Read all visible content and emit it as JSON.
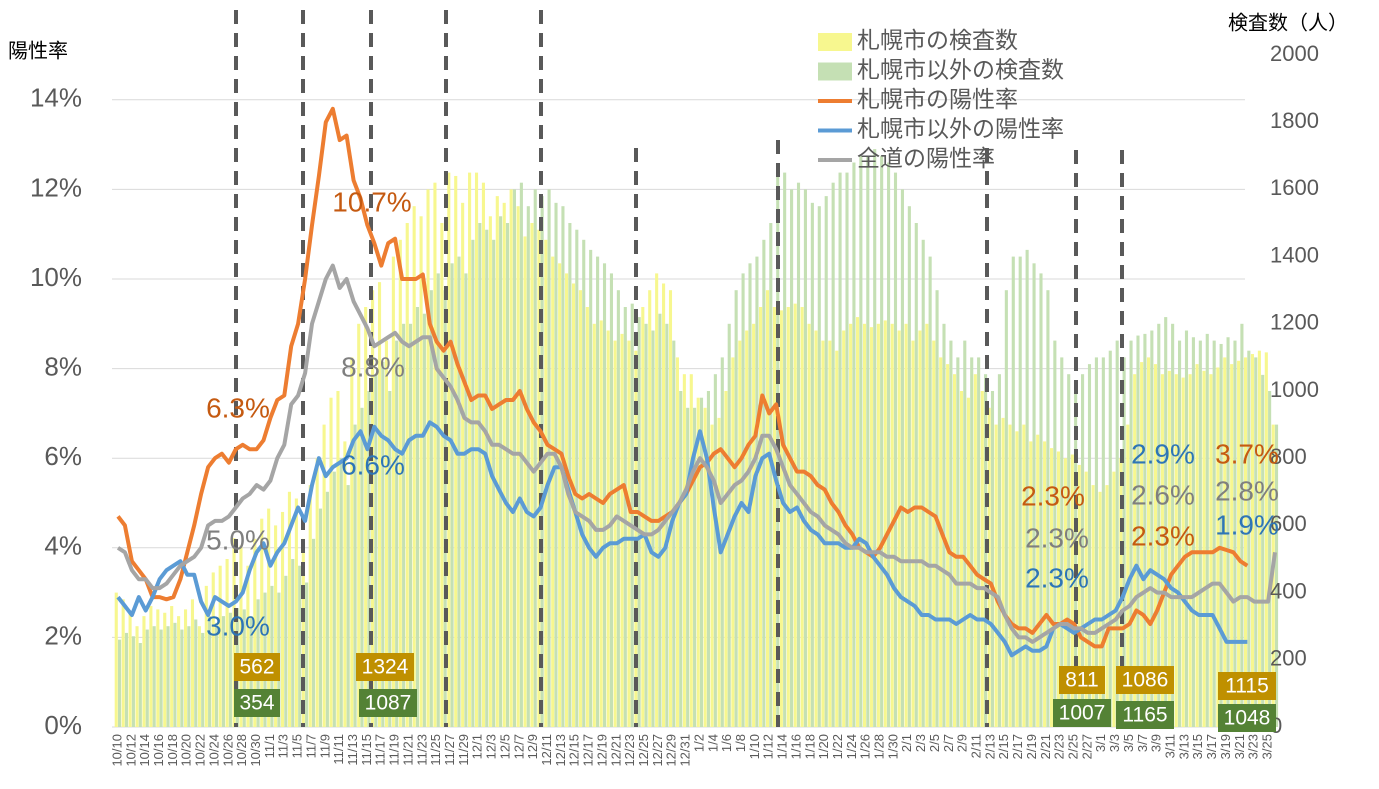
{
  "chart_data": {
    "type": "combo",
    "y_label": "陽性率",
    "y2_label": "検査数（人）",
    "ylim": [
      0,
      15
    ],
    "yticks": [
      {
        "value": 0,
        "label": "0%"
      },
      {
        "value": 2,
        "label": "2%"
      },
      {
        "value": 4,
        "label": "4%"
      },
      {
        "value": 6,
        "label": "6%"
      },
      {
        "value": 8,
        "label": "8%"
      },
      {
        "value": 10,
        "label": "10%"
      },
      {
        "value": 12,
        "label": "12%"
      },
      {
        "value": 14,
        "label": "14%"
      }
    ],
    "y2lim": [
      0,
      2000
    ],
    "y2ticks": [
      0,
      200,
      400,
      600,
      800,
      1000,
      1200,
      1400,
      1600,
      1800,
      2000
    ],
    "grid": true,
    "categories": [
      "10/10",
      null,
      "10/12",
      null,
      "10/14",
      null,
      "10/16",
      null,
      "10/18",
      null,
      "10/20",
      null,
      "10/22",
      null,
      "10/24",
      null,
      "10/26",
      null,
      "10/28",
      null,
      "10/30",
      null,
      "11/1",
      null,
      "11/3",
      null,
      "11/5",
      null,
      "11/7",
      null,
      "11/9",
      null,
      "11/11",
      null,
      "11/13",
      null,
      "11/15",
      null,
      "11/17",
      null,
      "11/19",
      null,
      "11/21",
      null,
      "11/23",
      null,
      "11/25",
      null,
      "11/27",
      null,
      "11/29",
      null,
      "12/1",
      null,
      "12/3",
      null,
      "12/5",
      null,
      "12/7",
      null,
      "12/9",
      null,
      "12/11",
      null,
      "12/13",
      null,
      "12/15",
      null,
      "12/17",
      null,
      "12/19",
      null,
      "12/21",
      null,
      "12/23",
      null,
      "12/25",
      null,
      "12/27",
      null,
      "12/29",
      null,
      "12/31",
      null,
      "1/2",
      null,
      "1/4",
      null,
      "1/6",
      null,
      "1/8",
      null,
      "1/10",
      null,
      "1/12",
      null,
      "1/14",
      null,
      "1/16",
      null,
      "1/18",
      null,
      "1/20",
      null,
      "1/22",
      null,
      "1/24",
      null,
      "1/26",
      null,
      "1/28",
      null,
      "1/30",
      null,
      "2/1",
      null,
      "2/3",
      null,
      "2/5",
      null,
      "2/7",
      null,
      "2/9",
      null,
      "2/11",
      null,
      "2/13",
      null,
      "2/15",
      null,
      "2/17",
      null,
      "2/19",
      null,
      "2/21",
      null,
      "2/23",
      null,
      "2/25",
      null,
      "2/27",
      null,
      "3/1",
      null,
      "3/3",
      null,
      "3/5",
      null,
      "3/7",
      null,
      "3/9",
      null,
      "3/11",
      null,
      "3/13",
      null,
      "3/15",
      null,
      "3/17",
      null,
      "3/19",
      null,
      "3/21",
      null,
      "3/23",
      null,
      "3/25",
      null
    ],
    "series": [
      {
        "name": "札幌市の検査数",
        "type": "bar",
        "axis": "y2",
        "color": "#f7f78f",
        "values": [
          400,
          380,
          340,
          300,
          330,
          360,
          350,
          340,
          360,
          330,
          350,
          380,
          300,
          420,
          460,
          480,
          500,
          562,
          540,
          480,
          560,
          620,
          650,
          600,
          640,
          700,
          680,
          560,
          720,
          800,
          900,
          980,
          1000,
          850,
          1100,
          1200,
          1250,
          1300,
          1324,
          1150,
          1400,
          1450,
          1500,
          1550,
          1520,
          1600,
          1620,
          1500,
          1650,
          1640,
          1560,
          1650,
          1650,
          1620,
          1520,
          1580,
          1560,
          1600,
          1550,
          1460,
          1500,
          1480,
          1450,
          1400,
          1380,
          1350,
          1320,
          1300,
          1250,
          1200,
          1210,
          1180,
          1150,
          1170,
          1150,
          1120,
          1250,
          1300,
          1350,
          1320,
          1300,
          1100,
          1050,
          1050,
          980,
          950,
          900,
          920,
          1000,
          1100,
          1150,
          1180,
          1200,
          1250,
          1300,
          1250,
          1240,
          1250,
          1260,
          1250,
          1200,
          1180,
          1150,
          1150,
          1120,
          1180,
          1200,
          1220,
          1200,
          1190,
          1200,
          1210,
          1200,
          1180,
          1200,
          1150,
          1180,
          1200,
          1150,
          1100,
          1080,
          1050,
          1000,
          980,
          1050,
          1000,
          950,
          900,
          920,
          900,
          880,
          900,
          850,
          870,
          850,
          830,
          820,
          800,
          811,
          780,
          760,
          720,
          700,
          720,
          760,
          800,
          900,
          1050,
          1086,
          1100,
          1080,
          1050,
          1060,
          1050,
          1040,
          1050,
          1080,
          1060,
          1050,
          1070,
          1100,
          1080,
          1090,
          1100,
          1110,
          1120,
          1115,
          900
        ]
      },
      {
        "name": "札幌市以外の検査数",
        "type": "bar",
        "axis": "y2",
        "color": "#c5e0b4",
        "values": [
          260,
          280,
          270,
          250,
          290,
          300,
          290,
          300,
          310,
          290,
          300,
          320,
          280,
          330,
          310,
          330,
          340,
          354,
          350,
          330,
          380,
          400,
          420,
          400,
          450,
          500,
          480,
          430,
          560,
          650,
          700,
          760,
          800,
          720,
          900,
          950,
          1000,
          1050,
          1087,
          1000,
          1150,
          1200,
          1200,
          1250,
          1230,
          1300,
          1350,
          1300,
          1380,
          1400,
          1350,
          1450,
          1500,
          1480,
          1450,
          1520,
          1500,
          1600,
          1620,
          1550,
          1600,
          1580,
          1600,
          1560,
          1550,
          1500,
          1480,
          1450,
          1420,
          1400,
          1380,
          1350,
          1300,
          1250,
          1260,
          1220,
          1200,
          1180,
          1230,
          1200,
          1150,
          1000,
          950,
          950,
          980,
          1000,
          1050,
          1100,
          1200,
          1300,
          1350,
          1380,
          1400,
          1450,
          1500,
          1650,
          1650,
          1600,
          1620,
          1600,
          1560,
          1550,
          1580,
          1620,
          1650,
          1650,
          1680,
          1700,
          1700,
          1720,
          1700,
          1680,
          1650,
          1600,
          1550,
          1500,
          1450,
          1400,
          1300,
          1200,
          1150,
          1100,
          1150,
          1100,
          1100,
          1050,
          1000,
          1050,
          1300,
          1400,
          1400,
          1420,
          1380,
          1350,
          1300,
          1150,
          1100,
          1050,
          1007,
          1050,
          1080,
          1100,
          1100,
          1120,
          1150,
          1100,
          1150,
          1165,
          1170,
          1180,
          1200,
          1220,
          1200,
          1150,
          1180,
          1160,
          1150,
          1170,
          1150,
          1140,
          1160,
          1150,
          1200,
          1120,
          1100,
          1048,
          1000,
          900
        ]
      },
      {
        "name": "札幌市の陽性率",
        "type": "line",
        "color": "#ed7d31",
        "values": [
          4.7,
          4.5,
          3.7,
          3.5,
          3.3,
          2.9,
          2.9,
          2.85,
          2.9,
          3.3,
          3.9,
          4.5,
          5.2,
          5.8,
          6.0,
          6.1,
          5.9,
          6.2,
          6.3,
          6.2,
          6.2,
          6.4,
          6.9,
          7.3,
          7.4,
          8.5,
          9.0,
          10.0,
          11.2,
          12.3,
          13.5,
          13.8,
          13.1,
          13.2,
          12.2,
          11.8,
          11.2,
          10.8,
          10.3,
          10.8,
          10.9,
          10.0,
          10.0,
          10.0,
          10.1,
          9.0,
          8.6,
          8.4,
          8.6,
          8.1,
          7.7,
          7.3,
          7.4,
          7.4,
          7.1,
          7.2,
          7.3,
          7.3,
          7.5,
          7.1,
          6.8,
          6.6,
          6.3,
          6.2,
          6.1,
          5.6,
          5.2,
          5.1,
          5.2,
          5.1,
          5.0,
          5.2,
          5.3,
          5.4,
          4.8,
          4.8,
          4.7,
          4.6,
          4.6,
          4.7,
          4.8,
          5.0,
          5.2,
          5.5,
          5.8,
          5.9,
          6.1,
          6.2,
          6.0,
          5.8,
          6.0,
          6.3,
          6.5,
          7.4,
          7.0,
          7.2,
          6.3,
          6.0,
          5.7,
          5.7,
          5.6,
          5.4,
          5.3,
          5.0,
          4.8,
          4.5,
          4.3,
          4.0,
          3.9,
          3.8,
          4.0,
          4.3,
          4.6,
          4.9,
          4.8,
          4.9,
          4.9,
          4.8,
          4.7,
          4.3,
          3.9,
          3.8,
          3.8,
          3.6,
          3.4,
          3.3,
          3.2,
          2.8,
          2.5,
          2.3,
          2.2,
          2.2,
          2.1,
          2.3,
          2.5,
          2.3,
          2.3,
          2.4,
          2.3,
          2.0,
          1.9,
          1.8,
          1.8,
          2.2,
          2.2,
          2.2,
          2.3,
          2.6,
          2.5,
          2.3,
          2.6,
          3.0,
          3.4,
          3.6,
          3.8,
          3.9,
          3.9,
          3.9,
          3.9,
          4.0,
          3.95,
          3.9,
          3.7,
          3.6,
          null,
          null,
          null,
          null
        ]
      },
      {
        "name": "札幌市以外の陽性率",
        "type": "line",
        "color": "#5b9bd5",
        "values": [
          2.9,
          2.7,
          2.5,
          2.9,
          2.6,
          2.9,
          3.3,
          3.5,
          3.6,
          3.7,
          3.4,
          3.4,
          2.8,
          2.5,
          2.9,
          2.8,
          2.7,
          2.8,
          3.0,
          3.5,
          3.9,
          4.1,
          3.6,
          3.9,
          4.1,
          4.5,
          4.9,
          4.6,
          5.4,
          6.0,
          5.6,
          5.8,
          5.9,
          6.0,
          6.4,
          6.6,
          6.2,
          6.7,
          6.5,
          6.4,
          6.2,
          6.1,
          6.4,
          6.5,
          6.5,
          6.8,
          6.7,
          6.5,
          6.4,
          6.1,
          6.1,
          6.2,
          6.2,
          6.1,
          5.6,
          5.3,
          5.0,
          4.8,
          5.1,
          4.8,
          4.7,
          4.9,
          5.4,
          5.8,
          5.8,
          5.3,
          4.8,
          4.3,
          4.0,
          3.8,
          4.0,
          4.1,
          4.1,
          4.2,
          4.2,
          4.2,
          4.3,
          3.9,
          3.8,
          4.0,
          4.6,
          5.0,
          5.2,
          6.0,
          6.6,
          6.0,
          4.9,
          3.9,
          4.3,
          4.7,
          5.0,
          4.8,
          5.6,
          6.0,
          6.1,
          5.5,
          5.0,
          4.8,
          4.9,
          4.6,
          4.4,
          4.3,
          4.1,
          4.1,
          4.1,
          4.0,
          4.0,
          4.2,
          4.1,
          3.8,
          3.6,
          3.4,
          3.1,
          2.9,
          2.8,
          2.7,
          2.5,
          2.5,
          2.4,
          2.4,
          2.4,
          2.3,
          2.4,
          2.5,
          2.4,
          2.4,
          2.3,
          2.1,
          1.9,
          1.6,
          1.7,
          1.8,
          1.7,
          1.7,
          1.8,
          2.2,
          2.3,
          2.2,
          2.1,
          2.2,
          2.3,
          2.4,
          2.4,
          2.5,
          2.6,
          2.9,
          3.3,
          3.6,
          3.3,
          3.5,
          3.4,
          3.3,
          3.1,
          3.0,
          2.8,
          2.6,
          2.5,
          2.5,
          2.5,
          2.2,
          1.9,
          1.9,
          1.9,
          1.9,
          null,
          null,
          null,
          null
        ]
      },
      {
        "name": "全道の陽性率",
        "type": "line",
        "color": "#a5a5a5",
        "values": [
          4.0,
          3.9,
          3.5,
          3.3,
          3.3,
          3.1,
          3.1,
          3.2,
          3.4,
          3.6,
          3.7,
          3.8,
          4.0,
          4.5,
          4.6,
          4.6,
          4.7,
          4.9,
          5.1,
          5.2,
          5.4,
          5.3,
          5.5,
          6.0,
          6.3,
          7.2,
          7.4,
          7.9,
          9.0,
          9.5,
          10.0,
          10.3,
          9.8,
          10.0,
          9.5,
          9.2,
          8.9,
          8.5,
          8.6,
          8.7,
          8.8,
          8.6,
          8.5,
          8.6,
          8.7,
          8.7,
          8.0,
          7.8,
          7.6,
          7.3,
          6.9,
          6.8,
          6.8,
          6.6,
          6.3,
          6.3,
          6.2,
          6.1,
          6.1,
          5.9,
          5.7,
          5.9,
          6.1,
          6.1,
          5.8,
          5.2,
          4.8,
          4.7,
          4.6,
          4.4,
          4.4,
          4.5,
          4.7,
          4.6,
          4.5,
          4.4,
          4.3,
          4.3,
          4.4,
          4.6,
          4.8,
          5.0,
          5.3,
          5.7,
          6.0,
          5.8,
          5.5,
          5.0,
          5.2,
          5.4,
          5.5,
          5.7,
          6.0,
          6.5,
          6.5,
          6.2,
          5.8,
          5.4,
          5.2,
          5.0,
          4.8,
          4.7,
          4.5,
          4.4,
          4.3,
          4.1,
          4.0,
          4.0,
          3.9,
          3.9,
          3.9,
          3.8,
          3.8,
          3.7,
          3.7,
          3.7,
          3.7,
          3.6,
          3.6,
          3.5,
          3.4,
          3.2,
          3.2,
          3.2,
          3.1,
          3.1,
          3.0,
          2.9,
          2.5,
          2.2,
          2.0,
          2.0,
          1.9,
          2.0,
          2.1,
          2.2,
          2.3,
          2.3,
          2.2,
          2.2,
          2.1,
          2.1,
          2.2,
          2.3,
          2.4,
          2.6,
          2.7,
          2.9,
          3.0,
          3.1,
          3.0,
          3.0,
          2.9,
          2.9,
          2.9,
          2.9,
          3.0,
          3.1,
          3.2,
          3.2,
          3.0,
          2.8,
          2.9,
          2.9,
          2.8,
          2.8,
          2.8,
          3.9
        ]
      }
    ],
    "annotations": [
      {
        "text": "6.3%",
        "color": "#c55a11"
      },
      {
        "text": "10.7%",
        "color": "#c55a11"
      },
      {
        "text": "5.0%",
        "color": "#7f7f7f"
      },
      {
        "text": "8.8%",
        "color": "#7f7f7f"
      },
      {
        "text": "3.0%",
        "color": "#2e75b6"
      },
      {
        "text": "6.6%",
        "color": "#2e75b6"
      },
      {
        "text": "2.3%",
        "color": "#c55a11"
      },
      {
        "text": "2.3%",
        "color": "#7f7f7f"
      },
      {
        "text": "2.3%",
        "color": "#2e75b6"
      },
      {
        "text": "2.9%",
        "color": "#2e75b6"
      },
      {
        "text": "2.6%",
        "color": "#7f7f7f"
      },
      {
        "text": "2.3%",
        "color": "#c55a11"
      },
      {
        "text": "3.7%",
        "color": "#c55a11"
      },
      {
        "text": "2.8%",
        "color": "#7f7f7f"
      },
      {
        "text": "1.9%",
        "color": "#2e75b6"
      }
    ],
    "box_labels": [
      {
        "value": 562,
        "color": "#bf9000"
      },
      {
        "value": 354,
        "color": "#548235"
      },
      {
        "value": 1324,
        "color": "#bf9000"
      },
      {
        "value": 1087,
        "color": "#548235"
      },
      {
        "value": 811,
        "color": "#bf9000"
      },
      {
        "value": 1007,
        "color": "#548235"
      },
      {
        "value": 1086,
        "color": "#bf9000"
      },
      {
        "value": 1165,
        "color": "#548235"
      },
      {
        "value": 1115,
        "color": "#bf9000"
      },
      {
        "value": 1048,
        "color": "#548235"
      }
    ]
  }
}
